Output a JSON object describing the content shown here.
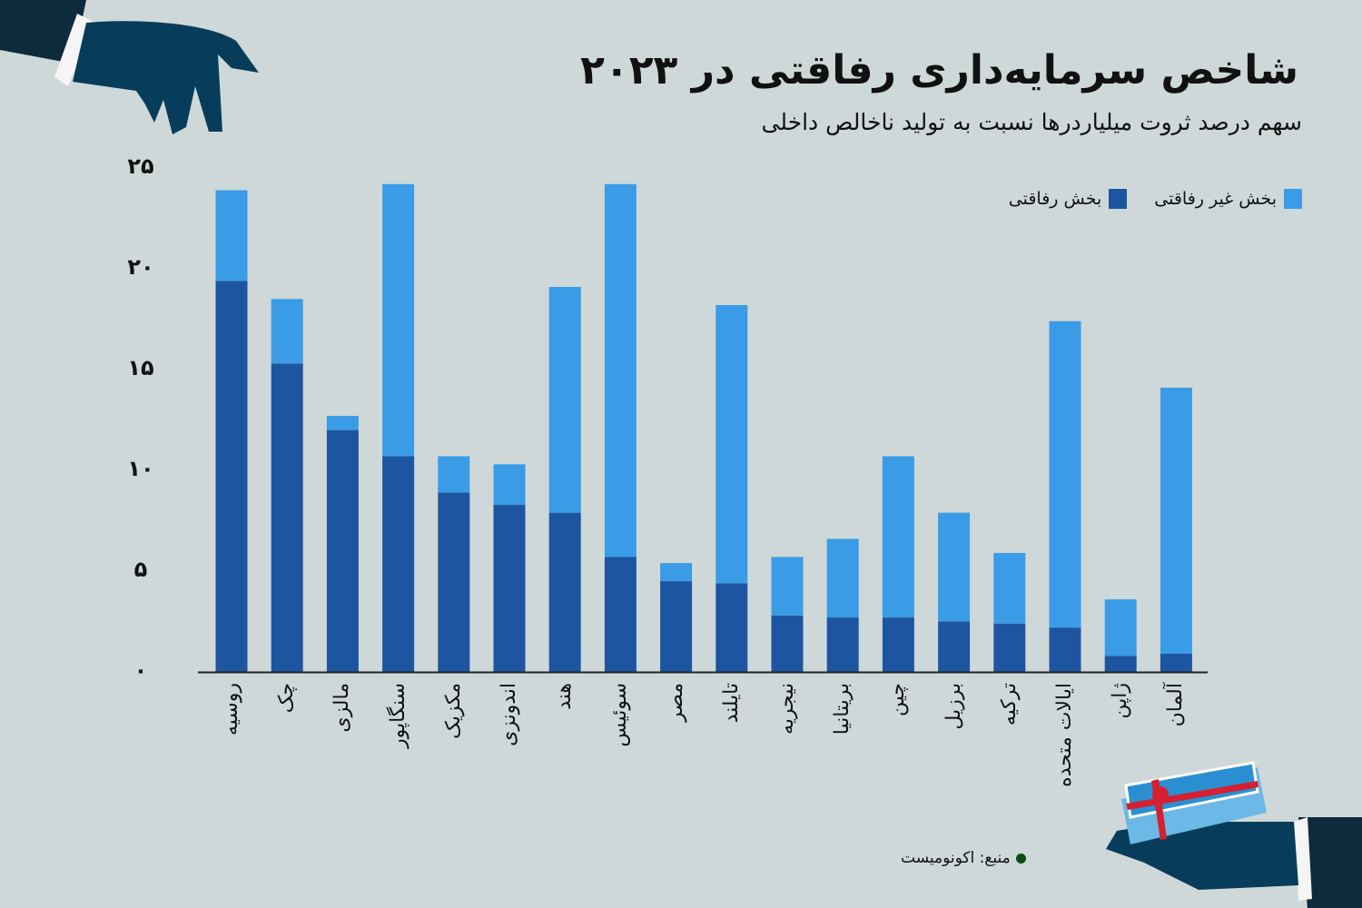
{
  "title": "شاخص سرمایه‌داری رفاقتی در ۲۰۲۳",
  "subtitle": "سهم درصد ثروت میلیاردرها نسبت به تولید ناخالص داخلی",
  "source": "منبع: اکونومیست",
  "chart_data": {
    "type": "bar",
    "stacked": true,
    "title": "شاخص سرمایه‌داری رفاقتی در ۲۰۲۳",
    "subtitle": "سهم درصد ثروت میلیاردرها نسبت به تولید ناخالص داخلی",
    "ylim": [
      0,
      25
    ],
    "yticks": [
      0,
      5,
      10,
      15,
      20,
      25
    ],
    "ytick_labels": [
      "۰",
      "۵",
      "۱۰",
      "۱۵",
      "۲۰",
      "۲۵"
    ],
    "grid": false,
    "legend_position": "top-right",
    "categories": [
      "روسیه",
      "چک",
      "مالزی",
      "سنگاپور",
      "مکزیک",
      "اندونزی",
      "هند",
      "سوئیس",
      "مصر",
      "تایلند",
      "نیجریه",
      "بریتانیا",
      "چین",
      "برزیل",
      "ترکیه",
      "ایالات متحده",
      "ژاپن",
      "آلمان"
    ],
    "series": [
      {
        "name": "بخش رفاقتی",
        "color": "#1e55a0",
        "values": [
          19.4,
          15.3,
          12.0,
          10.7,
          8.9,
          8.3,
          7.9,
          5.7,
          4.5,
          4.4,
          2.8,
          2.7,
          2.7,
          2.5,
          2.4,
          2.2,
          0.8,
          0.9
        ]
      },
      {
        "name": "بخش غیر رفاقتی",
        "color": "#3a9ce6",
        "values": [
          4.5,
          3.2,
          0.7,
          13.5,
          1.8,
          2.0,
          11.2,
          18.5,
          0.9,
          13.8,
          2.9,
          3.9,
          8.0,
          5.4,
          3.5,
          15.2,
          2.8,
          13.2
        ]
      }
    ]
  }
}
